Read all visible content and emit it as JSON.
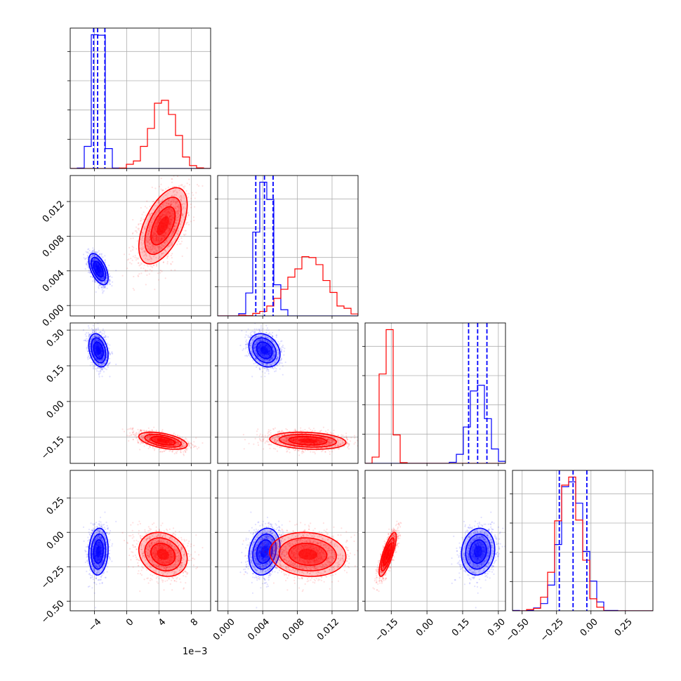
{
  "chart_data": {
    "type": "corner",
    "grid": true,
    "series": [
      {
        "key": "blue",
        "color": "#0000ff",
        "mean": [
          -0.0035,
          0.0042,
          0.215,
          -0.14
        ],
        "std": [
          0.0006,
          0.0009,
          0.035,
          0.085
        ],
        "corr": [
          [
            1,
            -0.55,
            -0.3,
            0.1
          ],
          [
            -0.55,
            1,
            -0.25,
            0.2
          ],
          [
            -0.3,
            -0.25,
            1,
            0.1
          ],
          [
            0.1,
            0.2,
            0.1,
            1
          ]
        ],
        "quantiles": [
          [
            -0.0041,
            -0.0036,
            -0.0027
          ],
          [
            0.0032,
            0.0042,
            0.0052
          ],
          [
            0.175,
            0.213,
            0.252
          ],
          [
            -0.23,
            -0.13,
            -0.03
          ]
        ]
      },
      {
        "key": "red",
        "color": "#ff0000",
        "mean": [
          0.0045,
          0.0092,
          -0.165,
          -0.16
        ],
        "std": [
          0.0015,
          0.0022,
          0.018,
          0.08
        ],
        "corr": [
          [
            1,
            0.55,
            -0.5,
            -0.2
          ],
          [
            0.55,
            1,
            -0.2,
            -0.1
          ],
          [
            -0.5,
            -0.2,
            1,
            0.8
          ],
          [
            -0.2,
            -0.1,
            0.8,
            1
          ]
        ],
        "quantiles": null
      }
    ],
    "parameters": [
      {
        "label": "",
        "range": [
          -0.007,
          0.0104
        ],
        "ticks": [
          -0.004,
          0,
          0.004,
          0.008
        ],
        "tick_labels": [
          "−4",
          "0",
          "4",
          "8"
        ],
        "offset_text": "1e−3"
      },
      {
        "label": "",
        "range": [
          -0.0012,
          0.015
        ],
        "ticks": [
          0,
          0.004,
          0.008,
          0.012
        ],
        "tick_labels": [
          "0.000",
          "0.004",
          "0.008",
          "0.012"
        ],
        "offset_text": ""
      },
      {
        "label": "",
        "range": [
          -0.26,
          0.33
        ],
        "ticks": [
          -0.15,
          0,
          0.15,
          0.3
        ],
        "tick_labels": [
          "−0.15",
          "0.00",
          "0.15",
          "0.30"
        ],
        "offset_text": ""
      },
      {
        "label": "",
        "range": [
          -0.57,
          0.45
        ],
        "ticks": [
          -0.5,
          -0.25,
          0,
          0.25
        ],
        "tick_labels": [
          "−0.50",
          "−0.25",
          "0.00",
          "0.25"
        ],
        "offset_text": ""
      }
    ]
  }
}
